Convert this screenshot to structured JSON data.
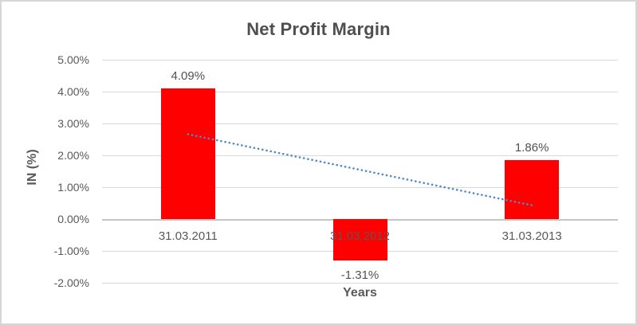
{
  "chart_data": {
    "type": "bar",
    "title": "Net Profit Margin",
    "xlabel": "Years",
    "ylabel": "IN (%)",
    "categories": [
      "31.03.2011",
      "31.03.2012",
      "31.03.2013"
    ],
    "series": [
      {
        "name": "Net Profit Margin",
        "color": "#ff0000",
        "values": [
          4.09,
          -1.31,
          1.86
        ],
        "data_labels": [
          "4.09%",
          "-1.31%",
          "1.86%"
        ]
      }
    ],
    "y_axis": {
      "ylim": [
        -2,
        5
      ],
      "ticks": [
        {
          "label": "5.00%",
          "value": 5
        },
        {
          "label": "4.00%",
          "value": 4
        },
        {
          "label": "3.00%",
          "value": 3
        },
        {
          "label": "2.00%",
          "value": 2
        },
        {
          "label": "1.00%",
          "value": 1
        },
        {
          "label": "0.00%",
          "value": 0
        },
        {
          "label": "-1.00%",
          "value": -1
        },
        {
          "label": "-2.00%",
          "value": -2
        }
      ]
    },
    "grid": true,
    "legend": false,
    "trendline": {
      "fit": "linear",
      "style": "dotted",
      "color": "#4e8bc8"
    }
  },
  "colors": {
    "bar": "#ff0000",
    "gridline": "#d9d9d9",
    "axis_line": "#c6c6c6",
    "text": "#595959",
    "title_text": "#4f4f4f",
    "trendline": "#4e8bc8",
    "frame_border": "#d7d7d7",
    "background": "#ffffff"
  }
}
